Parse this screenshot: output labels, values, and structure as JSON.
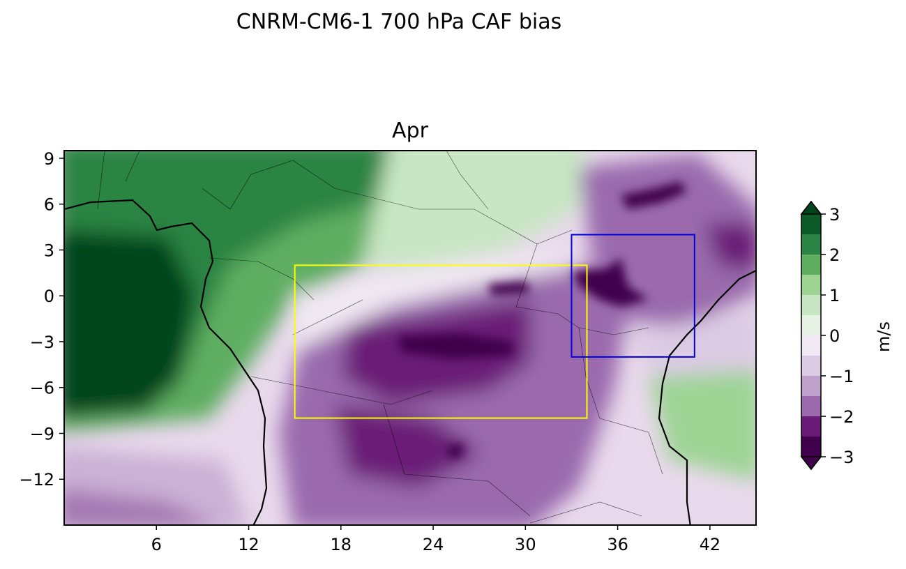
{
  "title": "CNRM-CM6-1 700 hPa CAF bias",
  "panel_title": "Apr",
  "map": {
    "lon_range": [
      0,
      45
    ],
    "lat_range": [
      -15,
      9.5
    ],
    "x_ticks": [
      "6",
      "12",
      "18",
      "24",
      "30",
      "36",
      "42"
    ],
    "y_ticks": [
      "9",
      "6",
      "3",
      "0",
      "−3",
      "−6",
      "−9",
      "−12"
    ],
    "x_tick_values": [
      6,
      12,
      18,
      24,
      30,
      36,
      42
    ],
    "y_tick_values": [
      9,
      6,
      3,
      0,
      -3,
      -6,
      -9,
      -12
    ],
    "boxes": [
      {
        "name": "yellow-region",
        "color": "#ffff00",
        "lon": [
          15,
          34
        ],
        "lat": [
          -8,
          2
        ]
      },
      {
        "name": "blue-region",
        "color": "#0000dd",
        "lon": [
          33,
          41
        ],
        "lat": [
          -4,
          4
        ]
      }
    ]
  },
  "colorbar": {
    "label": "m/s",
    "ticks": [
      "3",
      "2",
      "1",
      "0",
      "−1",
      "−2",
      "−3"
    ],
    "levels": [
      -3,
      -2.5,
      -2,
      -1.5,
      -1,
      -0.5,
      0,
      0.5,
      1,
      1.5,
      2,
      2.5,
      3
    ],
    "colors": [
      "#40004b",
      "#6a1b77",
      "#9a6aad",
      "#bda0cc",
      "#dccbe4",
      "#f0e8f2",
      "#e6f3e4",
      "#c8e6c3",
      "#9dd494",
      "#5fae62",
      "#2b8443",
      "#0b5a28"
    ],
    "extend_low_color": "#40004b",
    "extend_high_color": "#00441b"
  }
}
